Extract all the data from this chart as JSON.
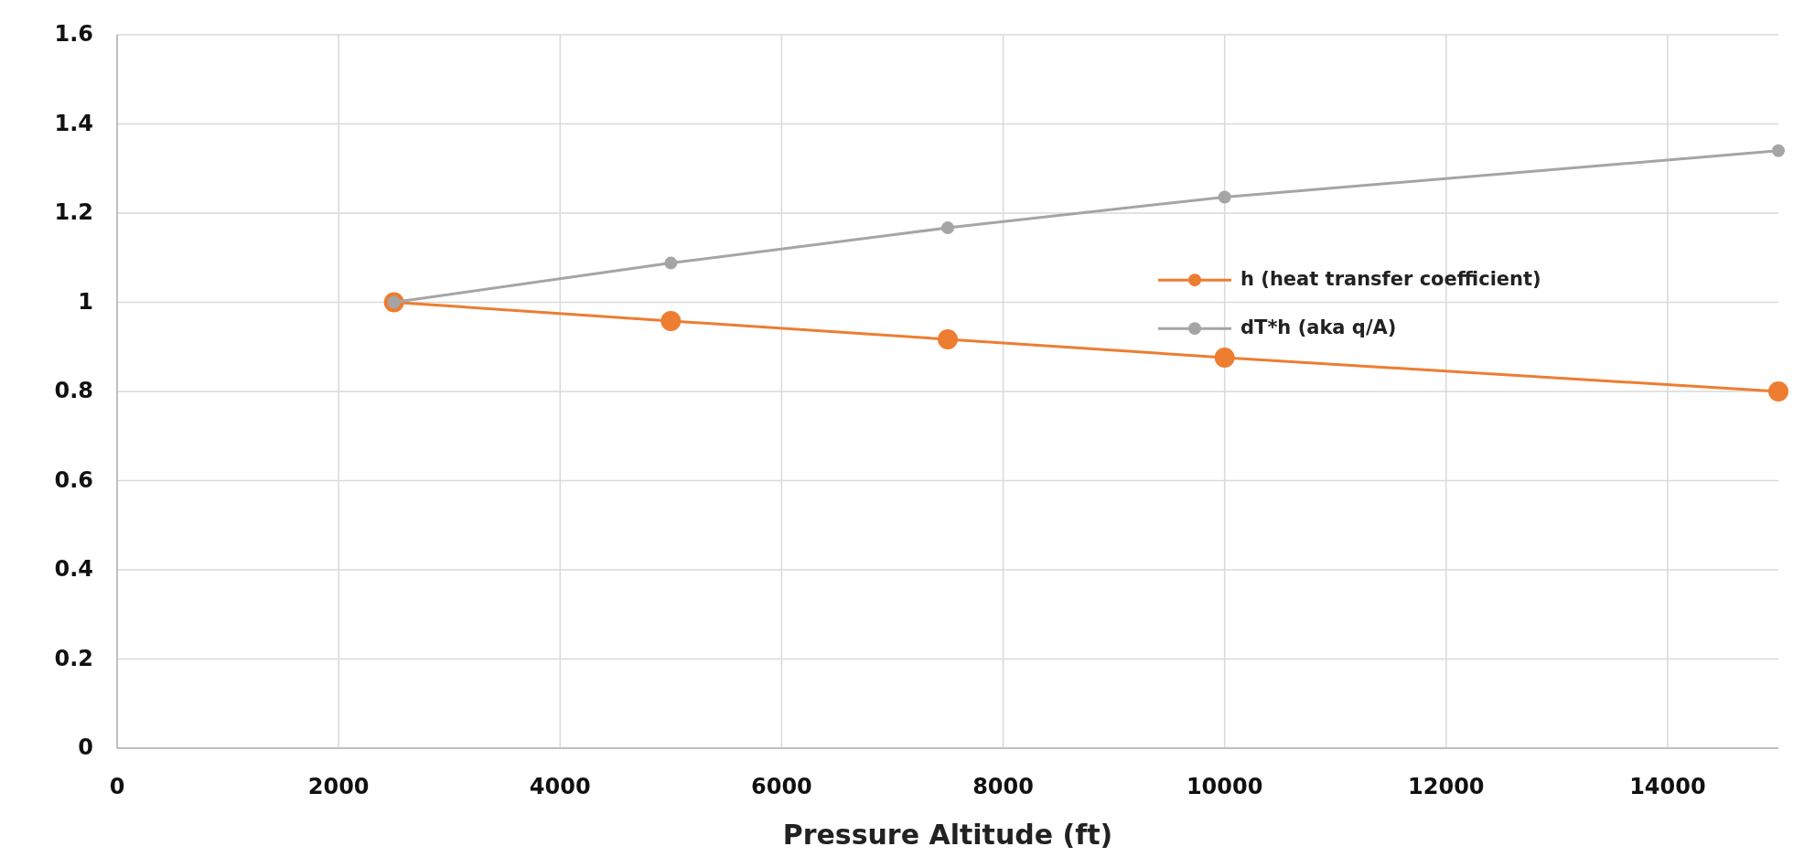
{
  "chart_data": {
    "type": "line",
    "xlabel": "Pressure Altitude (ft)",
    "x": [
      2500,
      5000,
      7500,
      10000,
      15000
    ],
    "series": [
      {
        "name": "h (heat transfer coefficient)",
        "color": "#ed7d31",
        "values": [
          1,
          0.958,
          0.917,
          0.876,
          0.8
        ]
      },
      {
        "name": "dT*h (aka q/A)",
        "color": "#a5a5a5",
        "values": [
          1,
          1.088,
          1.167,
          1.236,
          1.34
        ]
      }
    ],
    "xlim": [
      0,
      15000
    ],
    "xticks": [
      0,
      2000,
      4000,
      6000,
      8000,
      10000,
      12000,
      14000
    ],
    "ylim": [
      0,
      1.6
    ],
    "yticks": [
      0,
      0.2,
      0.4,
      0.6,
      0.8,
      1,
      1.2,
      1.4,
      1.6
    ],
    "grid": true,
    "legend": "right",
    "marker": "circle"
  }
}
